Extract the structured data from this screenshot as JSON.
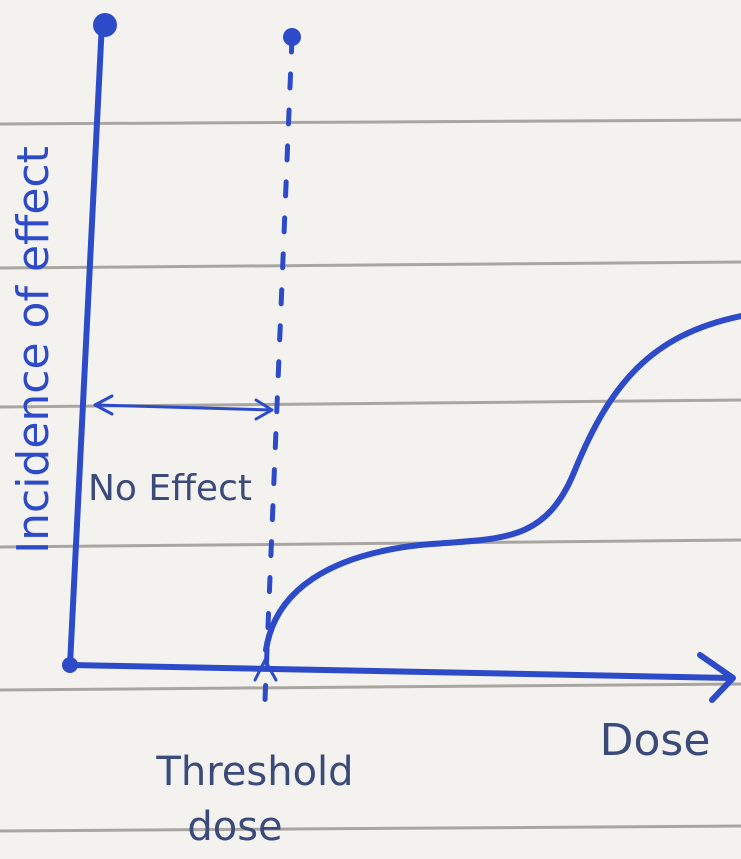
{
  "axis_labels": {
    "y": "Incidence of effect",
    "x": "Dose"
  },
  "annotations": {
    "no_effect": "No Effect",
    "threshold": [
      "Threshold",
      "dose"
    ]
  }
}
